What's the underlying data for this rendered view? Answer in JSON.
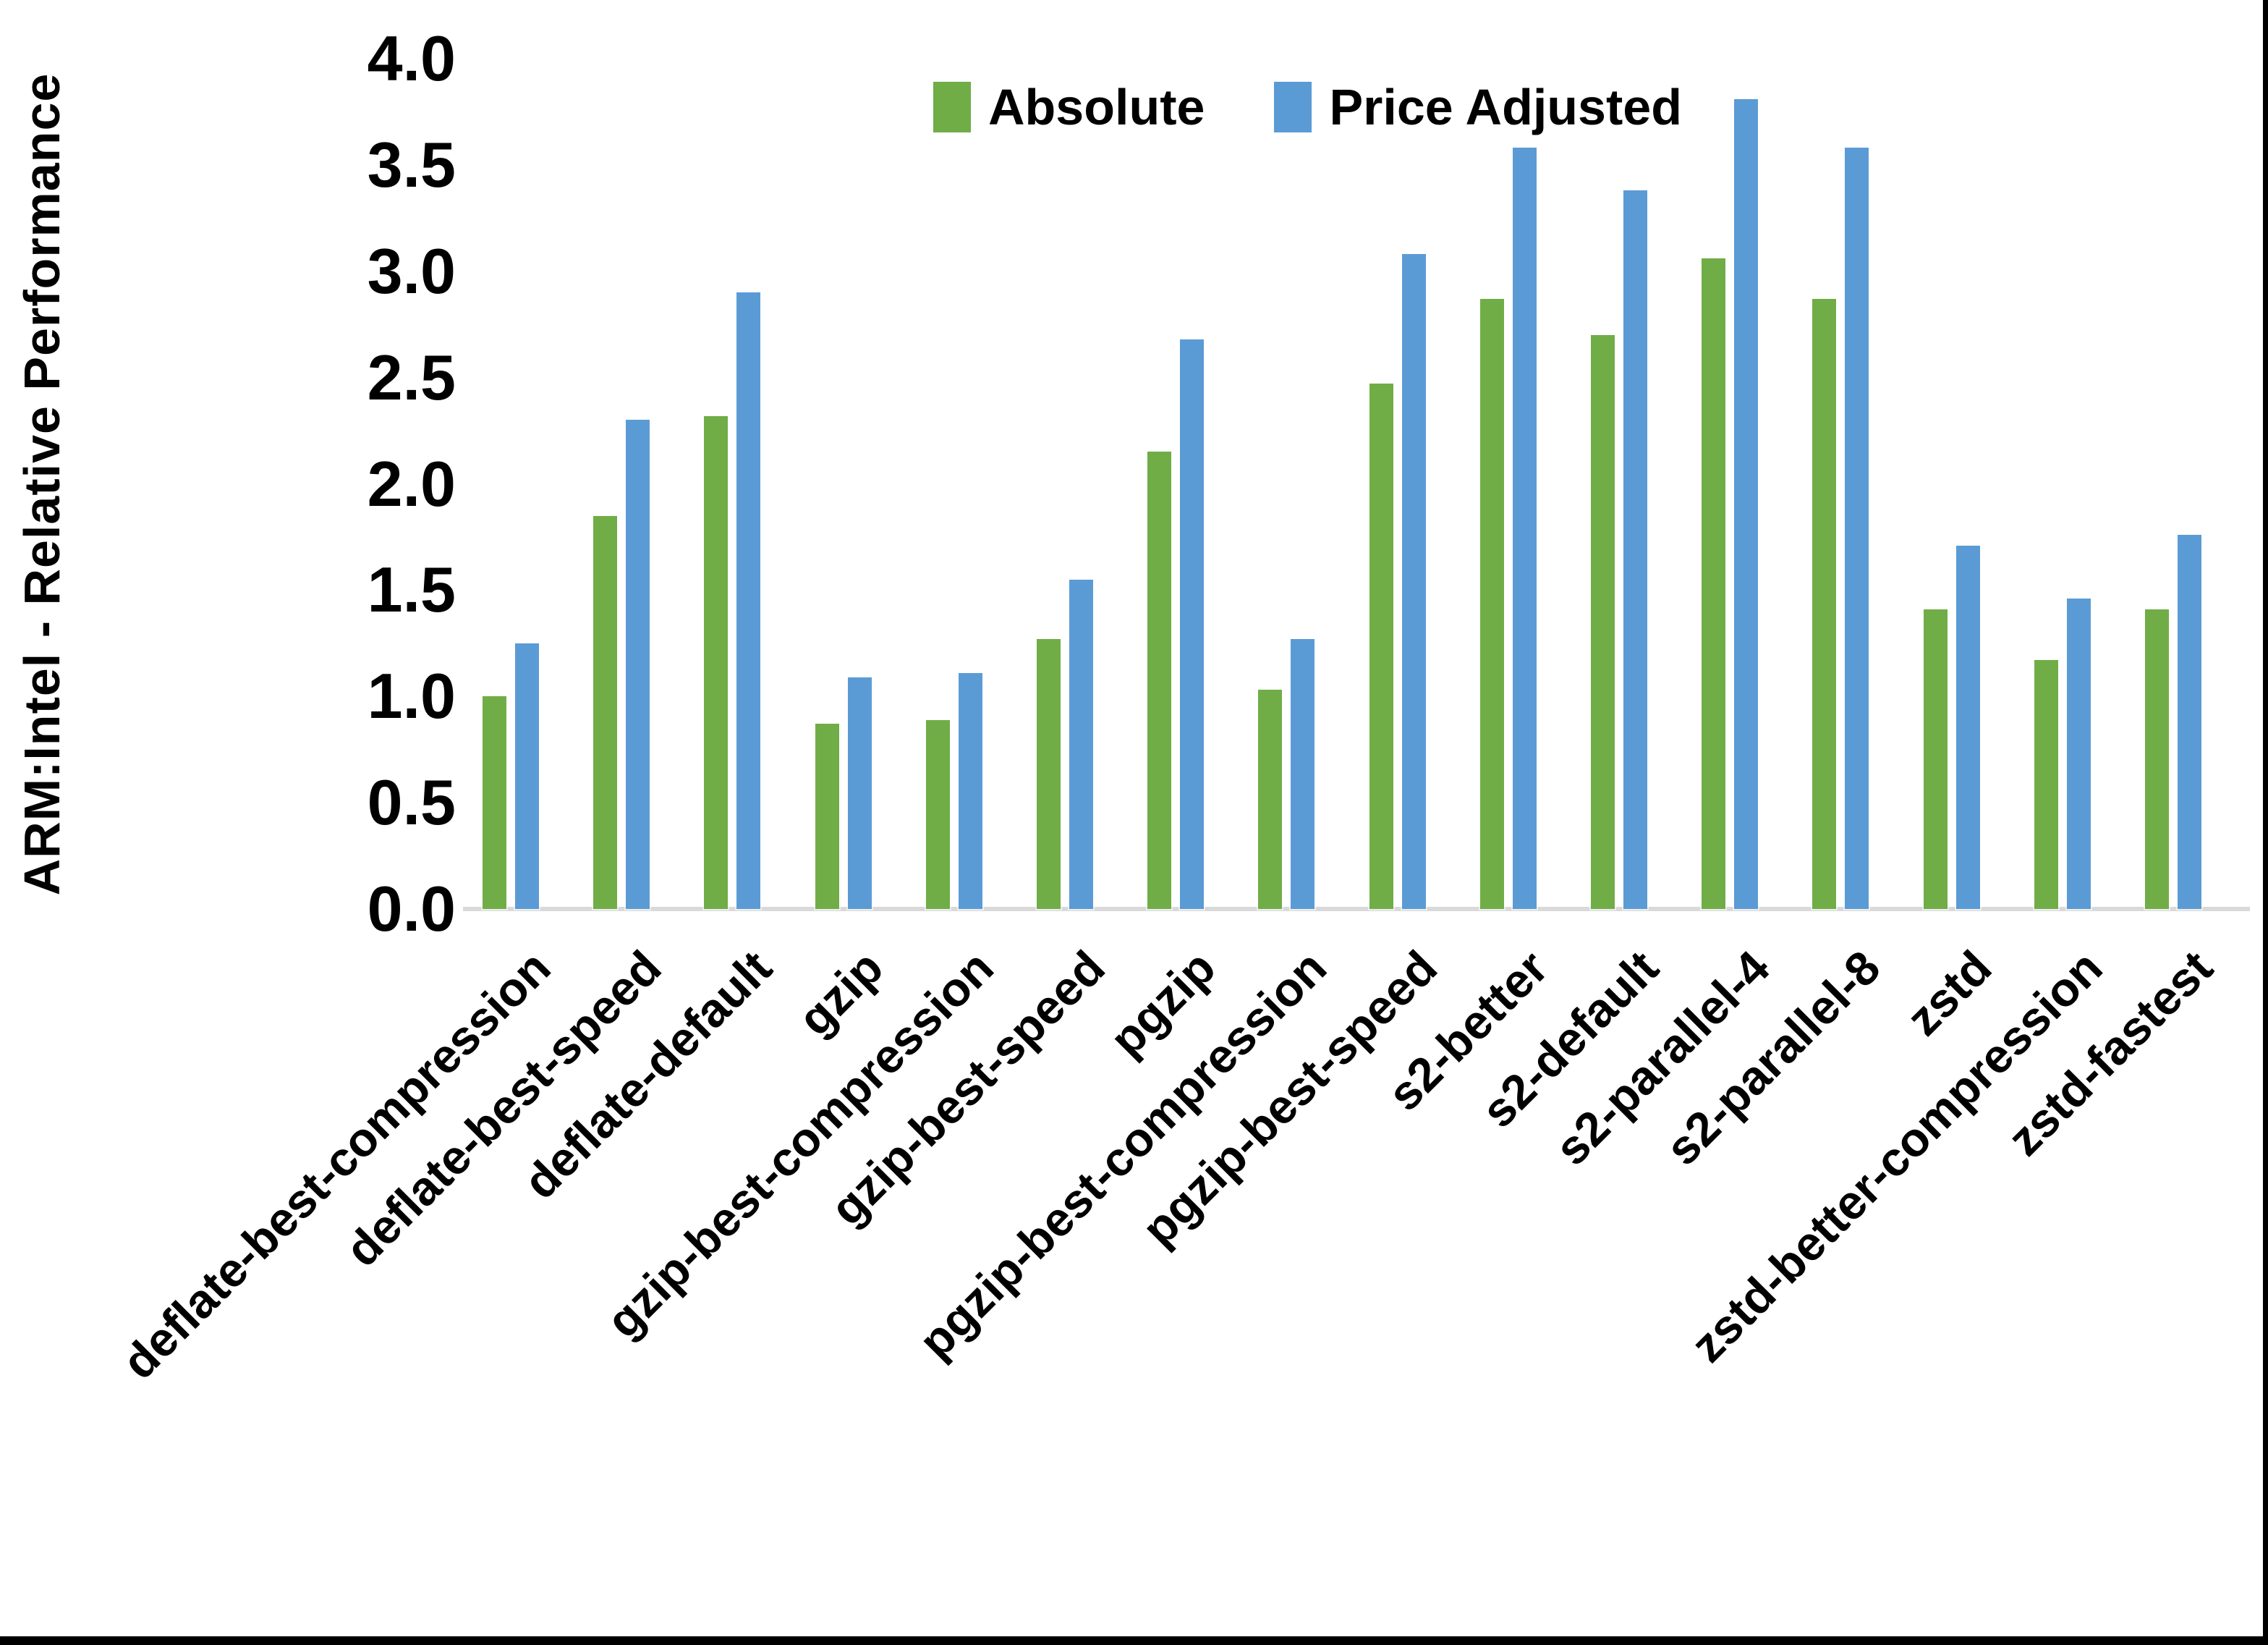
{
  "frame": {
    "background": "#FFFFFF",
    "border_color": "#000000",
    "axis_line_color": "#D9D9D9",
    "text_color": "#000000"
  },
  "chart_data": {
    "type": "bar",
    "title": "",
    "xlabel": "",
    "ylabel": "ARM:Intel - Relative Performance",
    "ylim": [
      0.0,
      4.0
    ],
    "ytick_step": 0.5,
    "ytick_labels": [
      "0.0",
      "0.5",
      "1.0",
      "1.5",
      "2.0",
      "2.5",
      "3.0",
      "3.5",
      "4.0"
    ],
    "grid": false,
    "legend_position": "top-center",
    "categories": [
      "deflate-best-compression",
      "deflate-best-speed",
      "deflate-default",
      "gzip",
      "gzip-best-compression",
      "gzip-best-speed",
      "pgzip",
      "pgzip-best-compression",
      "pgzip-best-speed",
      "s2-better",
      "s2-default",
      "s2-parallel-4",
      "s2-parallel-8",
      "zstd",
      "zstd-better-compression",
      "zstd-fastest"
    ],
    "series": [
      {
        "name": "Absolute",
        "color": "#70AD47",
        "values": [
          1.0,
          1.85,
          2.32,
          0.87,
          0.89,
          1.27,
          2.15,
          1.03,
          2.47,
          2.87,
          2.7,
          3.06,
          2.87,
          1.41,
          1.17,
          1.41
        ]
      },
      {
        "name": "Price Adjusted",
        "color": "#5B9BD5",
        "values": [
          1.25,
          2.3,
          2.9,
          1.09,
          1.11,
          1.55,
          2.68,
          1.27,
          3.08,
          3.58,
          3.38,
          3.81,
          3.58,
          1.71,
          1.46,
          1.76
        ]
      }
    ]
  }
}
